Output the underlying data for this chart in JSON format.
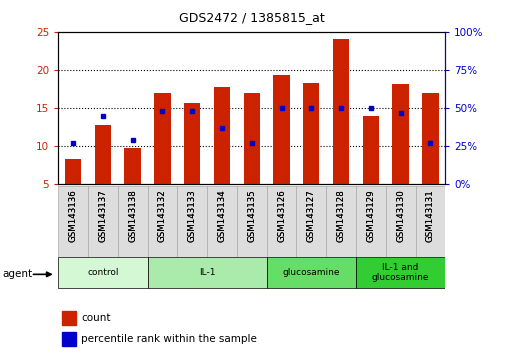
{
  "title": "GDS2472 / 1385815_at",
  "samples": [
    "GSM143136",
    "GSM143137",
    "GSM143138",
    "GSM143132",
    "GSM143133",
    "GSM143134",
    "GSM143135",
    "GSM143126",
    "GSM143127",
    "GSM143128",
    "GSM143129",
    "GSM143130",
    "GSM143131"
  ],
  "count_values": [
    8.3,
    12.7,
    9.7,
    17.0,
    15.7,
    17.7,
    17.0,
    19.3,
    18.3,
    24.0,
    13.9,
    18.1,
    17.0
  ],
  "percentile_values": [
    27,
    45,
    29,
    48,
    48,
    37,
    27,
    50,
    50,
    50,
    50,
    47,
    27
  ],
  "ylim_left": [
    5,
    25
  ],
  "ylim_right": [
    0,
    100
  ],
  "yticks_left": [
    5,
    10,
    15,
    20,
    25
  ],
  "yticks_right": [
    0,
    25,
    50,
    75,
    100
  ],
  "groups": [
    {
      "label": "control",
      "start": 0,
      "end": 3,
      "color": "#d4f7d4"
    },
    {
      "label": "IL-1",
      "start": 3,
      "end": 7,
      "color": "#aaeaaa"
    },
    {
      "label": "glucosamine",
      "start": 7,
      "end": 10,
      "color": "#66dd66"
    },
    {
      "label": "IL-1 and\nglucosamine",
      "start": 10,
      "end": 13,
      "color": "#33cc33"
    }
  ],
  "bar_color": "#cc2200",
  "percentile_color": "#0000cc",
  "bar_width": 0.55,
  "legend_count_label": "count",
  "legend_percentile_label": "percentile rank within the sample",
  "agent_label": "agent",
  "tick_label_color_left": "#cc2200",
  "tick_label_color_right": "#0000cc",
  "ybase": 5
}
